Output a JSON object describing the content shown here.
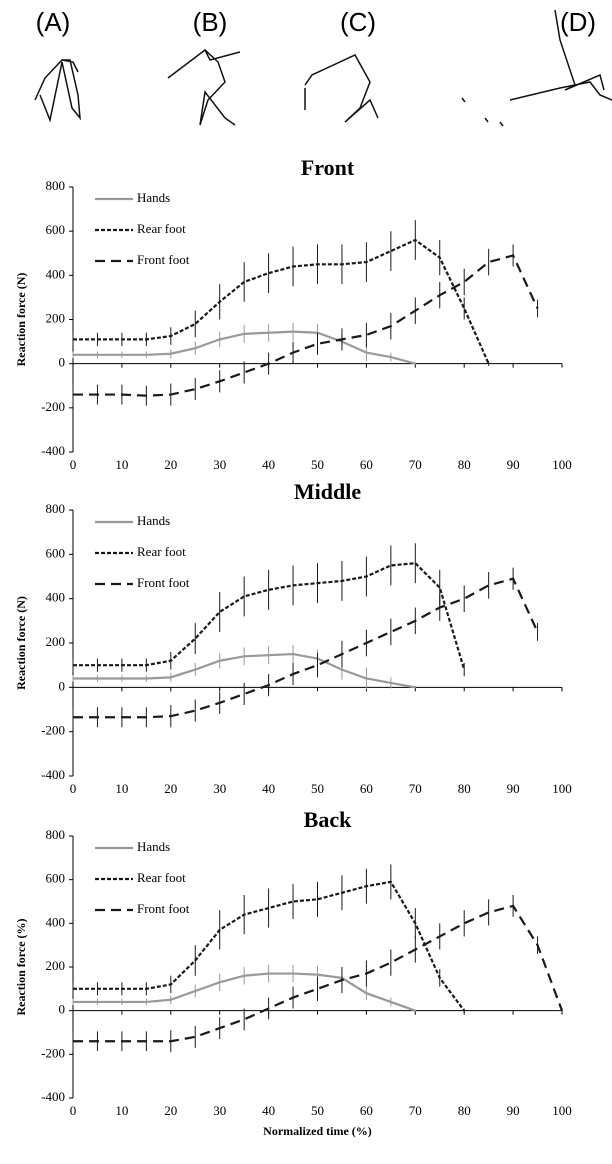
{
  "figure_labels": [
    "(A)",
    "(B)",
    "(C)",
    "(D)"
  ],
  "chart_data": [
    {
      "type": "line",
      "title": "Front",
      "y_label": "Reaction force (N)",
      "x": [
        0,
        5,
        10,
        15,
        20,
        25,
        30,
        35,
        40,
        45,
        50,
        55,
        60,
        65,
        70,
        75,
        80,
        85,
        90,
        95,
        100
      ],
      "xlim": [
        0,
        100
      ],
      "xticks": [
        0,
        10,
        20,
        30,
        40,
        50,
        60,
        70,
        80,
        90,
        100
      ],
      "ylim": [
        -400,
        800
      ],
      "yticks": [
        -400,
        -200,
        0,
        200,
        400,
        600,
        800
      ],
      "series": [
        {
          "name": "Hands",
          "color": "#999999",
          "dash": "solid",
          "values": [
            40,
            40,
            40,
            40,
            45,
            70,
            110,
            135,
            140,
            145,
            140,
            100,
            50,
            30,
            0,
            null,
            null,
            null,
            null,
            null,
            null
          ],
          "errors": [
            15,
            15,
            15,
            15,
            20,
            30,
            35,
            40,
            40,
            40,
            40,
            40,
            40,
            20,
            5,
            null,
            null,
            null,
            null,
            null,
            null
          ]
        },
        {
          "name": "Rear foot",
          "color": "#1a1a1a",
          "dash": "short",
          "values": [
            110,
            110,
            110,
            110,
            125,
            180,
            280,
            370,
            410,
            440,
            450,
            450,
            460,
            510,
            560,
            480,
            250,
            0,
            null,
            null,
            null
          ],
          "errors": [
            30,
            30,
            30,
            30,
            40,
            60,
            80,
            90,
            90,
            90,
            90,
            90,
            90,
            90,
            90,
            80,
            50,
            10,
            null,
            null,
            null
          ]
        },
        {
          "name": "Front foot",
          "color": "#1a1a1a",
          "dash": "long",
          "values": [
            -140,
            -140,
            -140,
            -145,
            -140,
            -115,
            -80,
            -40,
            0,
            50,
            90,
            110,
            130,
            170,
            240,
            310,
            370,
            460,
            490,
            250,
            null
          ],
          "errors": [
            45,
            45,
            45,
            45,
            50,
            50,
            50,
            50,
            50,
            50,
            50,
            50,
            55,
            60,
            60,
            60,
            60,
            60,
            50,
            40,
            null
          ]
        }
      ]
    },
    {
      "type": "line",
      "title": "Middle",
      "y_label": "Reaction force (N)",
      "x": [
        0,
        5,
        10,
        15,
        20,
        25,
        30,
        35,
        40,
        45,
        50,
        55,
        60,
        65,
        70,
        75,
        80,
        85,
        90,
        95,
        100
      ],
      "xlim": [
        0,
        100
      ],
      "xticks": [
        0,
        10,
        20,
        30,
        40,
        50,
        60,
        70,
        80,
        90,
        100
      ],
      "ylim": [
        -400,
        800
      ],
      "yticks": [
        -400,
        -200,
        0,
        200,
        400,
        600,
        800
      ],
      "series": [
        {
          "name": "Hands",
          "color": "#999999",
          "dash": "solid",
          "values": [
            40,
            40,
            40,
            40,
            45,
            80,
            120,
            140,
            145,
            150,
            130,
            80,
            40,
            20,
            0,
            null,
            null,
            null,
            null,
            null,
            null
          ],
          "errors": [
            15,
            15,
            15,
            15,
            20,
            30,
            35,
            40,
            40,
            40,
            40,
            45,
            50,
            25,
            5,
            null,
            null,
            null,
            null,
            null,
            null
          ]
        },
        {
          "name": "Rear foot",
          "color": "#1a1a1a",
          "dash": "short",
          "values": [
            100,
            100,
            100,
            100,
            120,
            220,
            340,
            410,
            440,
            460,
            470,
            480,
            500,
            550,
            560,
            450,
            80,
            null,
            null,
            null,
            null
          ],
          "errors": [
            30,
            30,
            30,
            30,
            40,
            70,
            90,
            90,
            90,
            90,
            90,
            90,
            90,
            90,
            90,
            80,
            30,
            null,
            null,
            null,
            null
          ]
        },
        {
          "name": "Front foot",
          "color": "#1a1a1a",
          "dash": "long",
          "values": [
            -135,
            -135,
            -135,
            -135,
            -130,
            -105,
            -70,
            -30,
            10,
            60,
            100,
            150,
            200,
            250,
            300,
            360,
            400,
            460,
            490,
            250,
            null
          ],
          "errors": [
            45,
            45,
            45,
            45,
            50,
            50,
            50,
            50,
            50,
            50,
            55,
            60,
            60,
            60,
            60,
            60,
            60,
            60,
            50,
            40,
            null
          ]
        }
      ]
    },
    {
      "type": "line",
      "title": "Back",
      "y_label": "Reaction force (%)",
      "x_label": "Normalized time (%)",
      "x": [
        0,
        5,
        10,
        15,
        20,
        25,
        30,
        35,
        40,
        45,
        50,
        55,
        60,
        65,
        70,
        75,
        80,
        85,
        90,
        95,
        100
      ],
      "xlim": [
        0,
        100
      ],
      "xticks": [
        0,
        10,
        20,
        30,
        40,
        50,
        60,
        70,
        80,
        90,
        100
      ],
      "ylim": [
        -400,
        800
      ],
      "yticks": [
        -400,
        -200,
        0,
        200,
        400,
        600,
        800
      ],
      "series": [
        {
          "name": "Hands",
          "color": "#999999",
          "dash": "solid",
          "values": [
            40,
            40,
            40,
            40,
            50,
            90,
            130,
            160,
            170,
            170,
            165,
            150,
            80,
            40,
            0,
            null,
            null,
            null,
            null,
            null,
            null
          ],
          "errors": [
            15,
            15,
            15,
            15,
            20,
            30,
            40,
            40,
            40,
            40,
            40,
            40,
            30,
            20,
            5,
            null,
            null,
            null,
            null,
            null,
            null
          ]
        },
        {
          "name": "Rear foot",
          "color": "#1a1a1a",
          "dash": "short",
          "values": [
            100,
            100,
            100,
            100,
            120,
            230,
            370,
            440,
            470,
            500,
            510,
            540,
            570,
            590,
            400,
            150,
            0,
            null,
            null,
            null,
            null
          ],
          "errors": [
            30,
            30,
            30,
            30,
            40,
            70,
            90,
            90,
            90,
            80,
            80,
            80,
            80,
            80,
            70,
            40,
            10,
            null,
            null,
            null,
            null
          ]
        },
        {
          "name": "Front foot",
          "color": "#1a1a1a",
          "dash": "long",
          "values": [
            -140,
            -140,
            -140,
            -140,
            -140,
            -120,
            -80,
            -40,
            10,
            60,
            100,
            140,
            170,
            220,
            280,
            340,
            400,
            450,
            480,
            300,
            0
          ],
          "errors": [
            45,
            45,
            45,
            45,
            50,
            50,
            50,
            50,
            50,
            50,
            55,
            60,
            60,
            60,
            60,
            60,
            60,
            60,
            50,
            40,
            10
          ]
        }
      ]
    }
  ]
}
